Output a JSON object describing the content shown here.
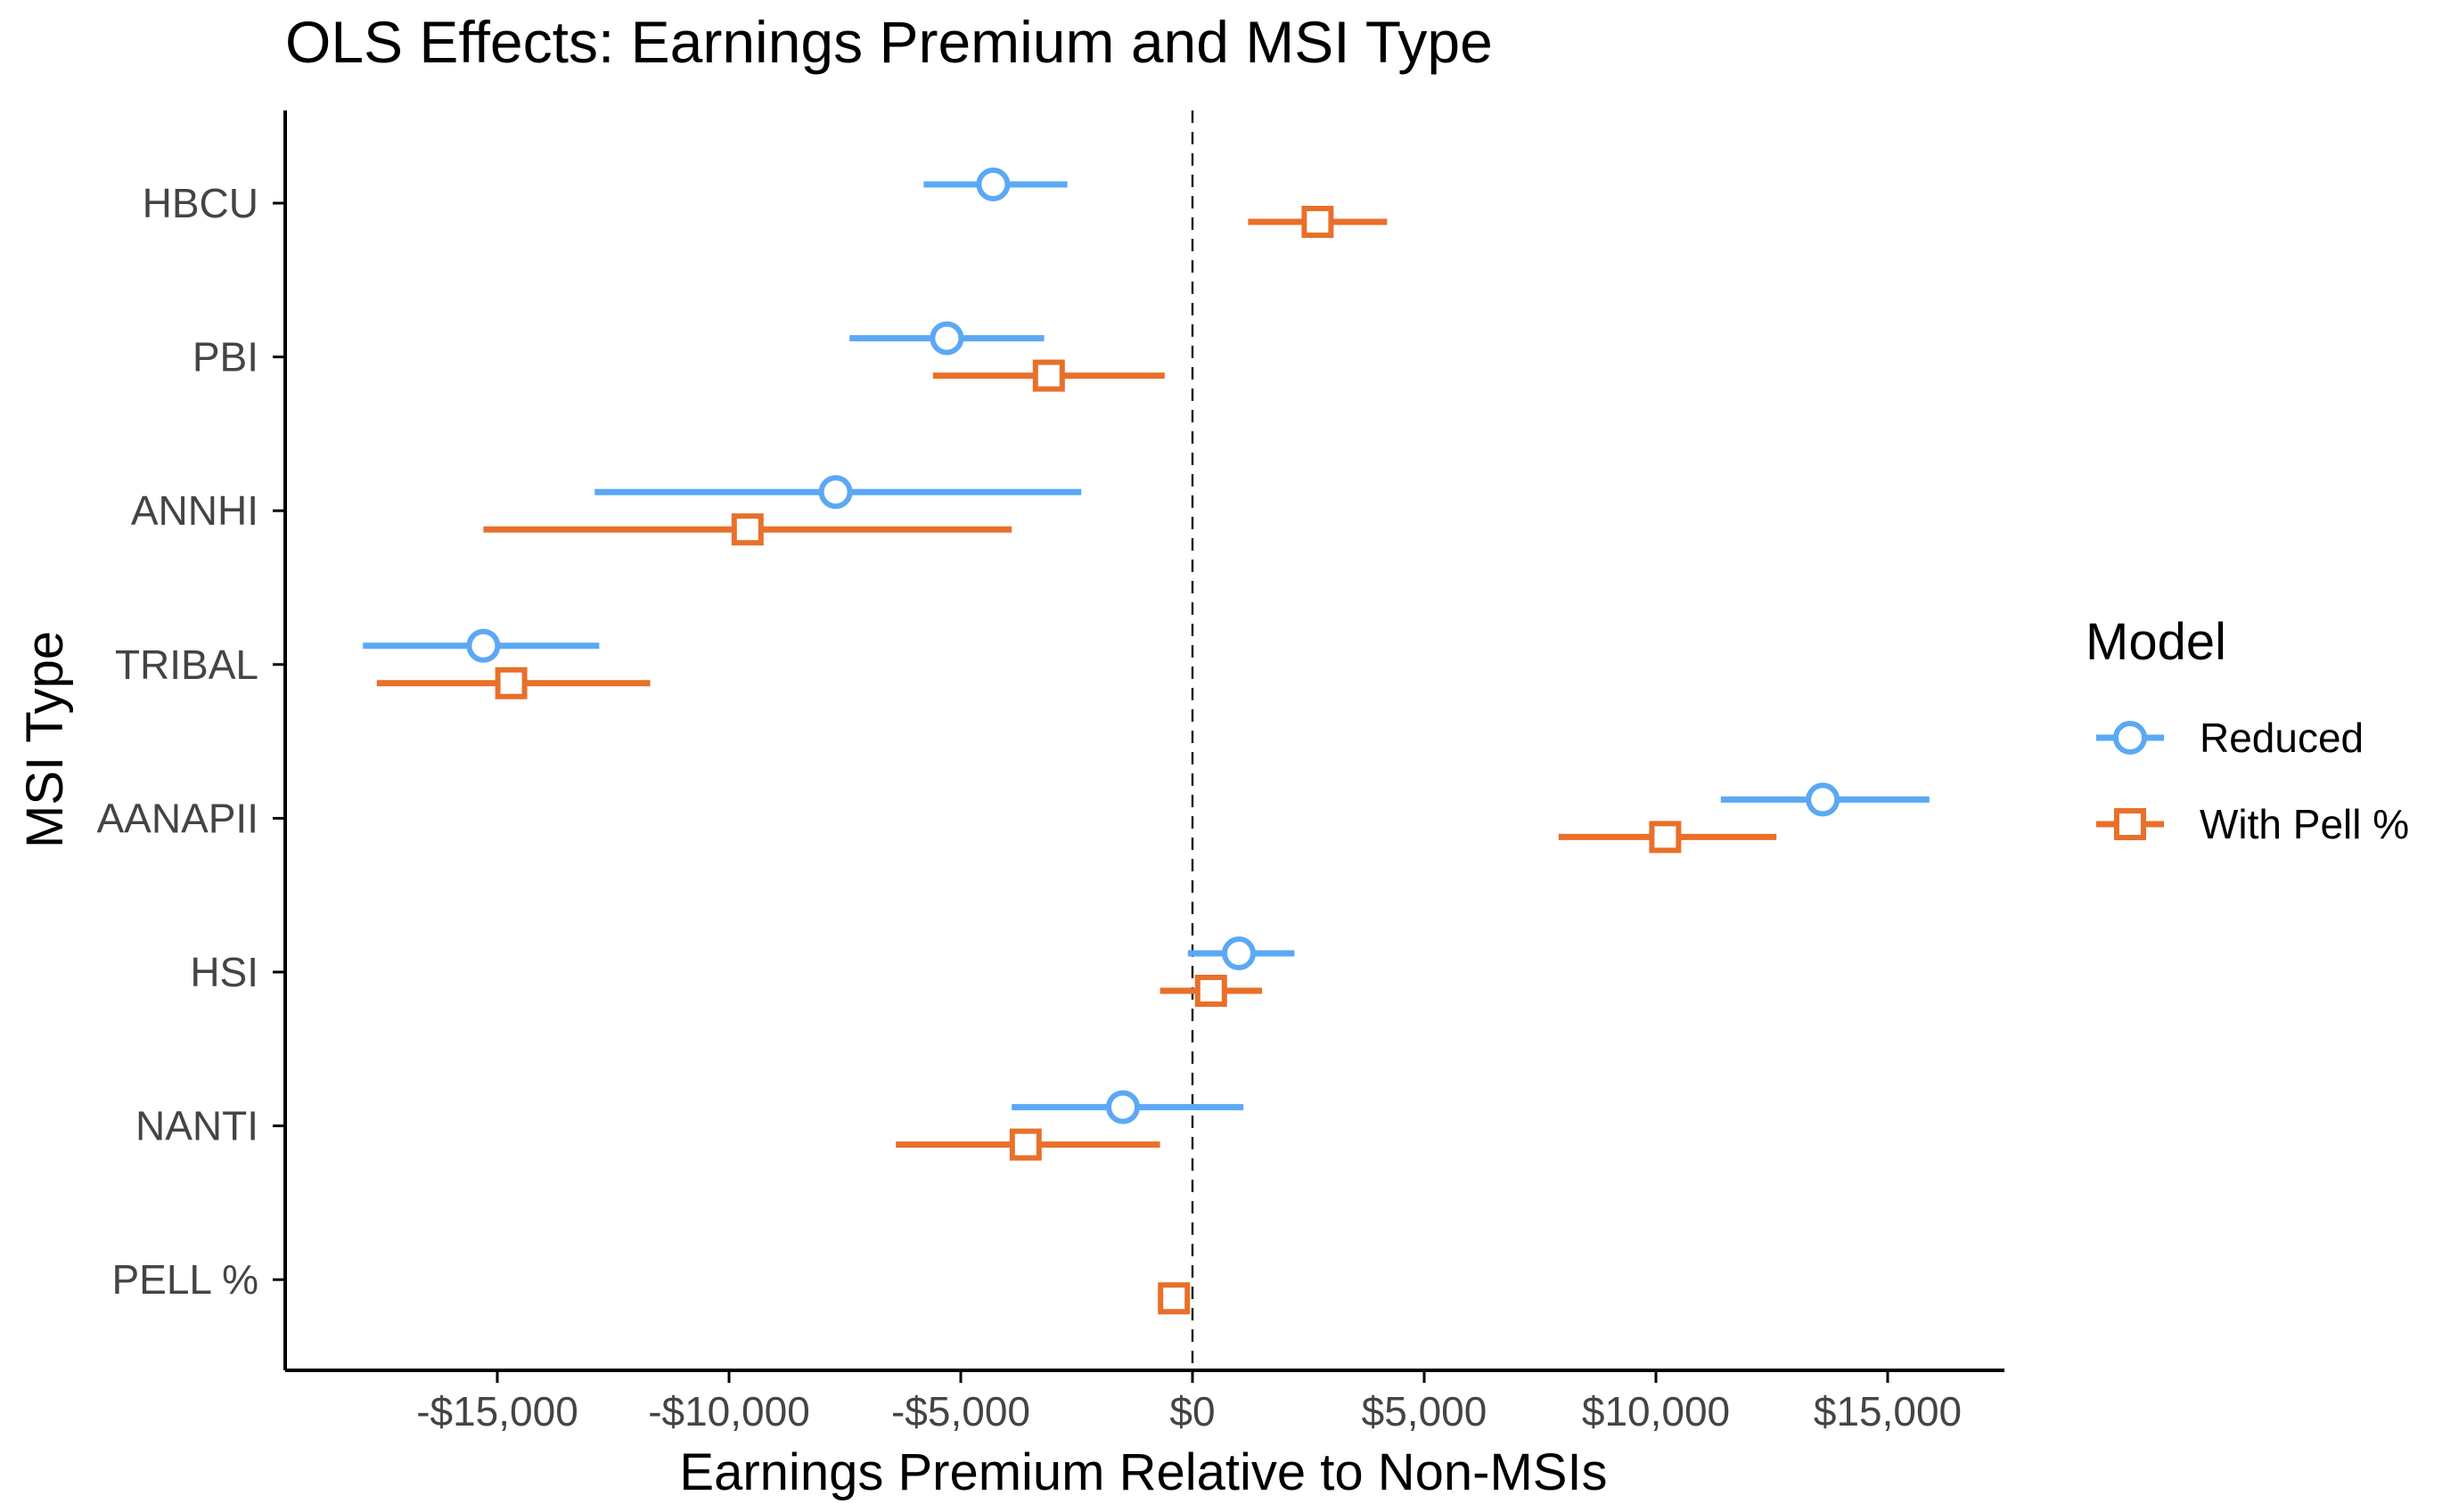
{
  "chart_data": {
    "type": "scatter",
    "title": "OLS Effects: Earnings Premium and MSI Type",
    "xlabel": "Earnings Premium Relative to Non-MSIs",
    "ylabel": "MSI Type",
    "xlim": [
      -19000,
      17500
    ],
    "xticks": [
      -15000,
      -10000,
      -5000,
      0,
      5000,
      10000,
      15000
    ],
    "xtick_labels": [
      "-$15,000",
      "-$10,000",
      "-$5,000",
      "$0",
      "$5,000",
      "$10,000",
      "$15,000"
    ],
    "reference_line": 0,
    "grid": false,
    "legend": {
      "title": "Model",
      "position": "right"
    },
    "categories": [
      "HBCU",
      "PBI",
      "ANNHI",
      "TRIBAL",
      "AANAPII",
      "HSI",
      "NANTI",
      "PELL %"
    ],
    "series": [
      {
        "name": "Reduced",
        "color": "#5BA8F5",
        "marker": "circle",
        "estimate": [
          -4300,
          -5300,
          -7700,
          -15300,
          13600,
          1000,
          -1500,
          null
        ],
        "ci_low": [
          -5800,
          -7400,
          -12900,
          -17900,
          11400,
          -100,
          -3900,
          null
        ],
        "ci_high": [
          -2700,
          -3200,
          -2400,
          -12800,
          15900,
          2200,
          1100,
          null
        ]
      },
      {
        "name": "With Pell %",
        "color": "#E8702A",
        "marker": "square",
        "estimate": [
          2700,
          -3100,
          -9600,
          -14700,
          10200,
          400,
          -3600,
          -400
        ],
        "ci_low": [
          1200,
          -5600,
          -15300,
          -17600,
          7900,
          -700,
          -6400,
          -500
        ],
        "ci_high": [
          4200,
          -600,
          -3900,
          -11700,
          12600,
          1500,
          -700,
          -300
        ]
      }
    ]
  }
}
